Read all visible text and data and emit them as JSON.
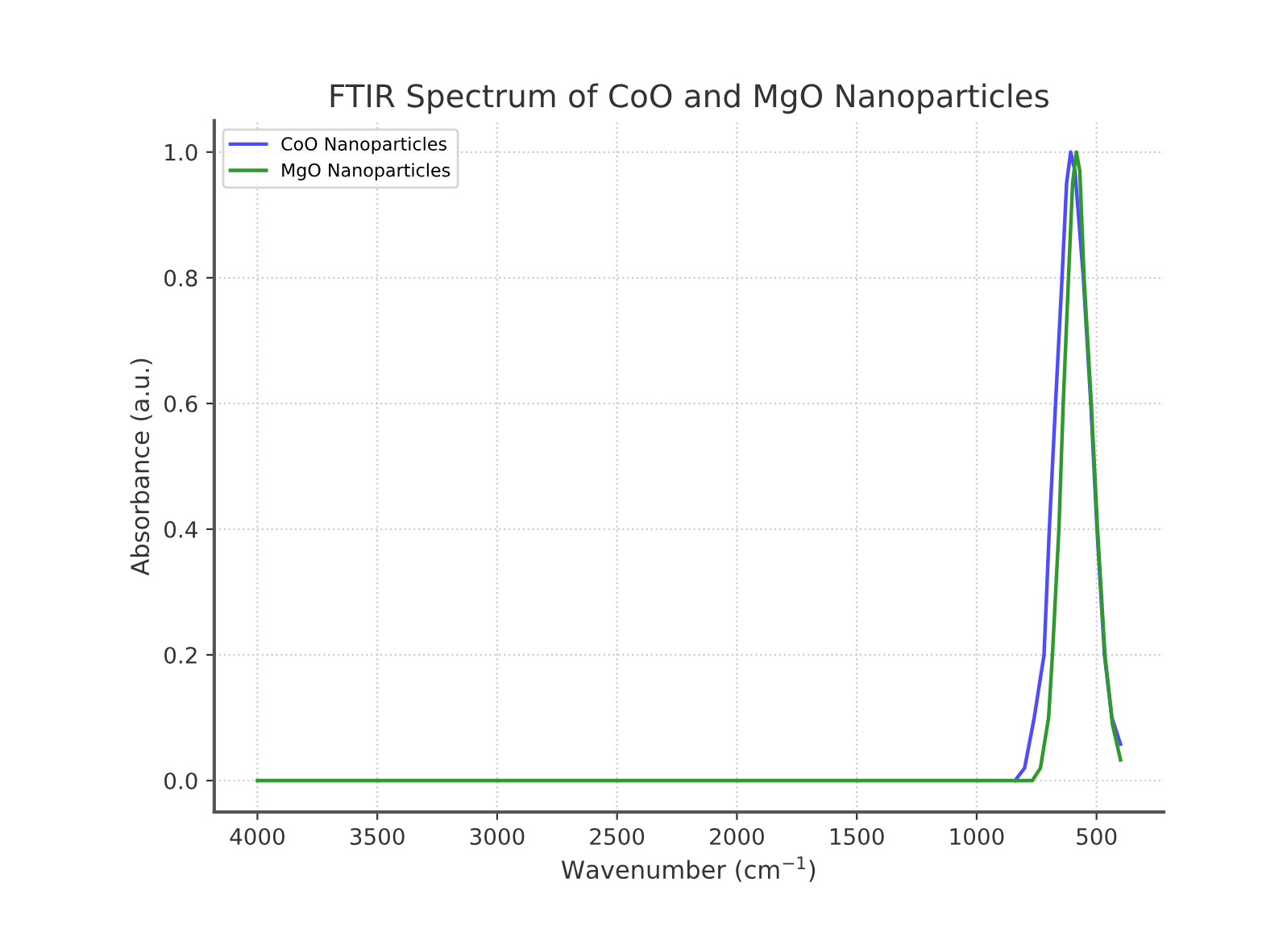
{
  "chart_data": {
    "type": "line",
    "title": "FTIR Spectrum of CoO and MgO Nanoparticles",
    "xlabel": "Wavenumber (cm$^{−1}$)",
    "ylabel": "Absorbance (a.u.)",
    "series": [
      {
        "name": "CoO Nanoparticles",
        "color": "#4d4dff",
        "x": [
          840,
          800,
          760,
          719,
          697,
          671,
          644,
          625,
          608,
          590,
          555,
          524,
          498,
          467,
          436,
          400
        ],
        "values": [
          0,
          0.02,
          0.1,
          0.2,
          0.4,
          0.6,
          0.8,
          0.95,
          1.0,
          0.97,
          0.8,
          0.6,
          0.4,
          0.2,
          0.1,
          0.058
        ]
      },
      {
        "name": "MgO Nanoparticles",
        "color": "#2e9a2e",
        "x": [
          4000,
          3000,
          2000,
          1000,
          768,
          734,
          700,
          684,
          657,
          639,
          617,
          600,
          584,
          570,
          552,
          522,
          496,
          465,
          434,
          400
        ],
        "values": [
          0,
          0,
          0,
          0,
          0,
          0.02,
          0.1,
          0.2,
          0.4,
          0.6,
          0.8,
          0.95,
          1.0,
          0.97,
          0.8,
          0.6,
          0.4,
          0.2,
          0.09,
          0.033
        ]
      }
    ],
    "xlim": [
      4180,
      220
    ],
    "xticks": [
      4000,
      3500,
      3000,
      2500,
      2000,
      1500,
      1000,
      500
    ],
    "ylim": [
      -0.05,
      1.05
    ],
    "yticks": [
      {
        "value": 0,
        "label": "0.0"
      },
      0.2,
      0.4,
      0.6,
      0.8,
      {
        "value": 1,
        "label": "1.0"
      }
    ],
    "grid": true,
    "legend": "top left",
    "line_style": "solid",
    "marker": "none"
  }
}
